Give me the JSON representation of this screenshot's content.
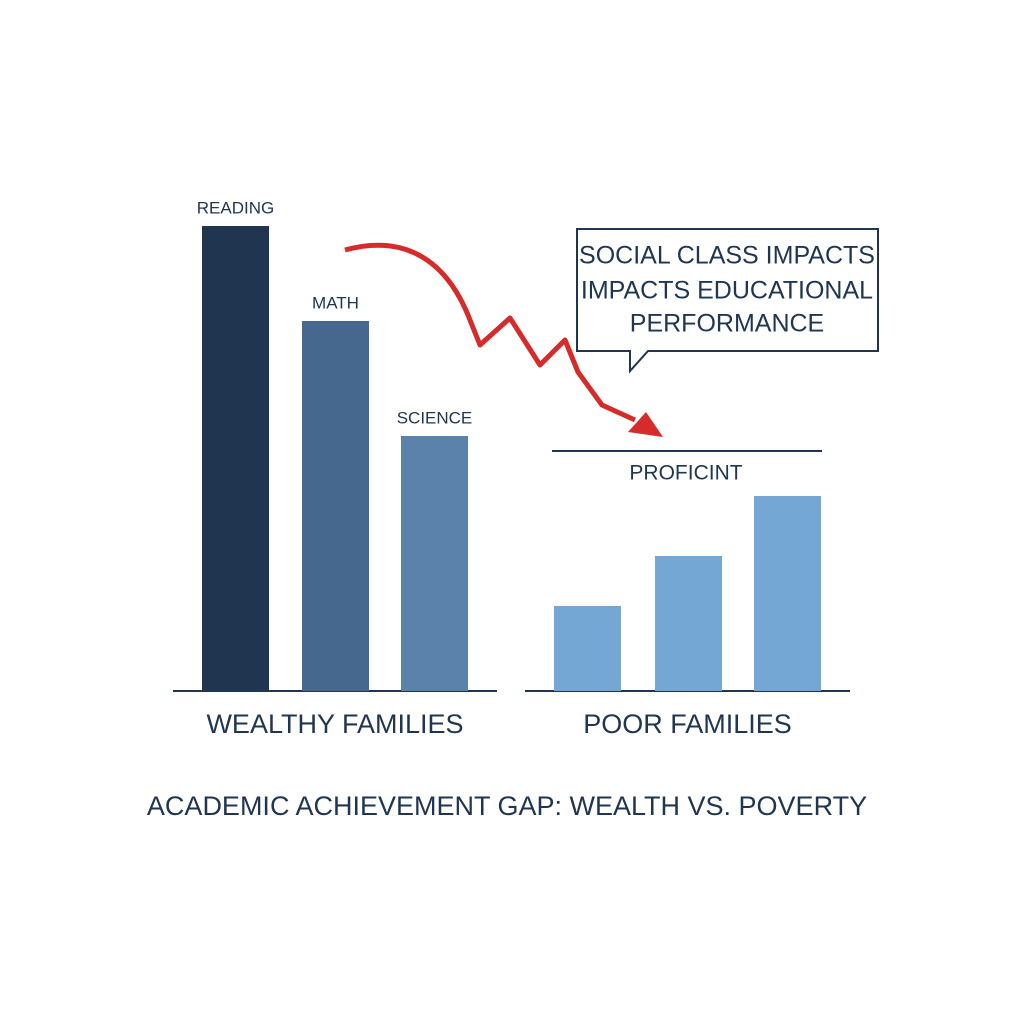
{
  "chart_data": {
    "type": "bar",
    "title": "ACADEMIC ACHIEVEMENT GAP: WEALTH VS. POVERTY",
    "annotation": [
      "SOCIAL CLASS IMPACTS",
      "IMPACTS EDUCATIONAL",
      "PERFORMANCE"
    ],
    "ylim": [
      0,
      100
    ],
    "groups": [
      {
        "name": "WEALTHY FAMILIES",
        "categories": [
          "READING",
          "MATH",
          "SCIENCE"
        ],
        "values": [
          93,
          74,
          51
        ],
        "colors": [
          "#1f3550",
          "#46688f",
          "#5b82aa"
        ]
      },
      {
        "name": "POOR FAMILIES",
        "categories": [
          null,
          null,
          null
        ],
        "values": [
          17,
          27,
          39
        ],
        "colors": [
          "#74a7d3",
          "#74a7d3",
          "#74a7d3"
        ]
      }
    ],
    "threshold": {
      "label": "PROFICINT",
      "value": 48
    }
  }
}
